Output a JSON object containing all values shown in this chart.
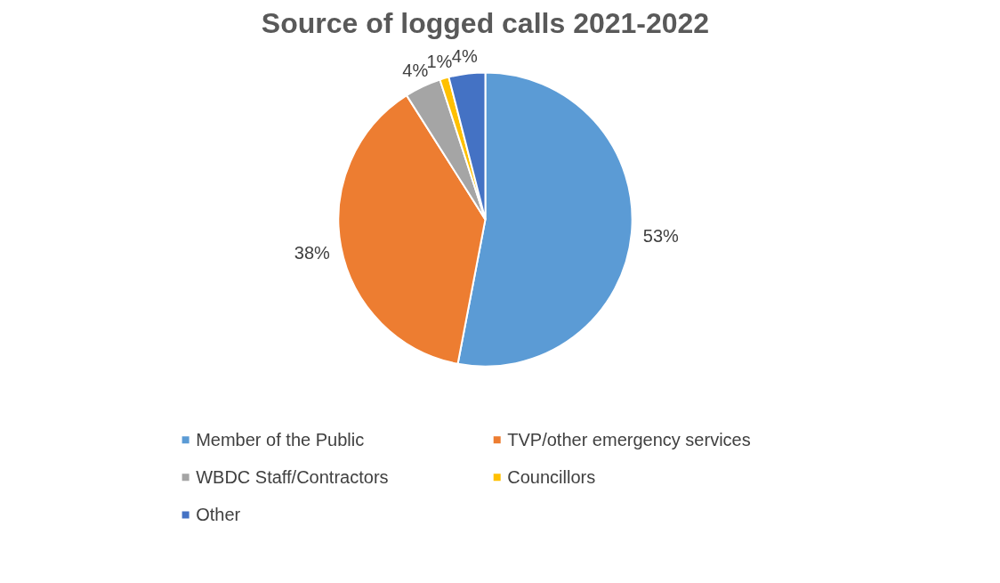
{
  "chart_data": {
    "type": "pie",
    "title": "Source of logged calls 2021-2022",
    "categories": [
      "Member of the Public",
      "TVP/other emergency services",
      "WBDC Staff/Contractors",
      "Councillors",
      "Other"
    ],
    "values": [
      53,
      38,
      4,
      1,
      4
    ],
    "colors": [
      "#5b9bd5",
      "#ed7d31",
      "#a5a5a5",
      "#ffc000",
      "#4472c4"
    ],
    "value_labels": [
      "53%",
      "38%",
      "4%",
      "1%",
      "4%"
    ],
    "legend": "bottom"
  }
}
